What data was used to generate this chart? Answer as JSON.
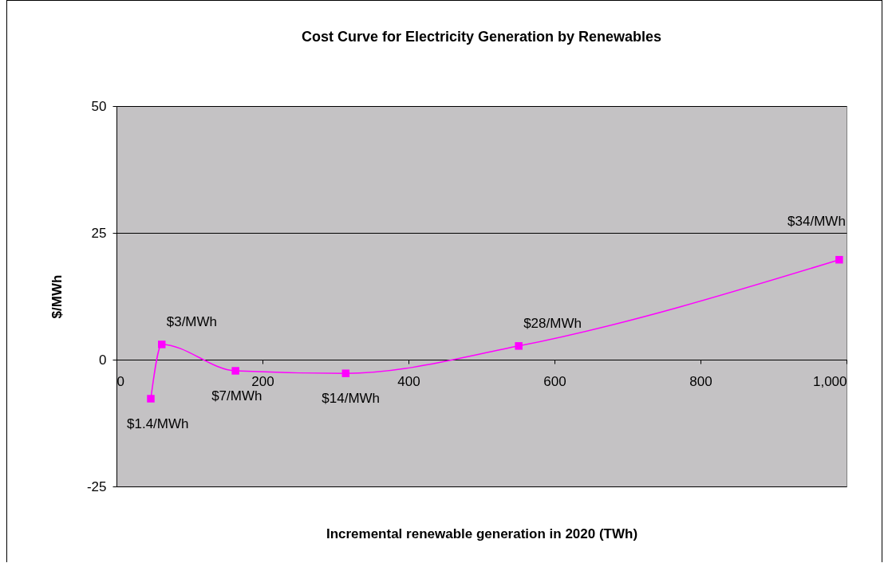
{
  "chart_data": {
    "type": "line",
    "title": "Cost Curve for Electricity Generation by Renewables",
    "xlabel": "Incremental renewable generation in 2020 (TWh)",
    "ylabel": "$/MWh",
    "x": [
      47,
      62,
      163,
      314,
      551,
      990
    ],
    "series": [
      {
        "color": "#ff00ff",
        "values": [
          -7.7,
          3.0,
          -2.2,
          -2.7,
          2.7,
          19.7
        ]
      }
    ],
    "xlim": [
      0,
      1000
    ],
    "xticks": [
      0,
      200,
      400,
      600,
      800,
      {
        "value": 1000,
        "label": "1,000"
      }
    ],
    "ylim": [
      -25,
      50
    ],
    "yticks": [
      -25,
      0,
      25,
      50
    ],
    "grid": "y",
    "marker": "square",
    "line_style": "solid",
    "annotations": [
      {
        "text": "$1.4/MWh",
        "x": 47,
        "y": -7.7
      },
      {
        "text": "$3/MWh",
        "x": 62,
        "y": 3.0
      },
      {
        "text": "$7/MWh",
        "x": 163,
        "y": -2.2
      },
      {
        "text": "$14/MWh",
        "x": 314,
        "y": -2.7
      },
      {
        "text": "$28/MWh",
        "x": 551,
        "y": 2.7
      },
      {
        "text": "$34/MWh",
        "x": 990,
        "y": 19.7
      }
    ]
  }
}
